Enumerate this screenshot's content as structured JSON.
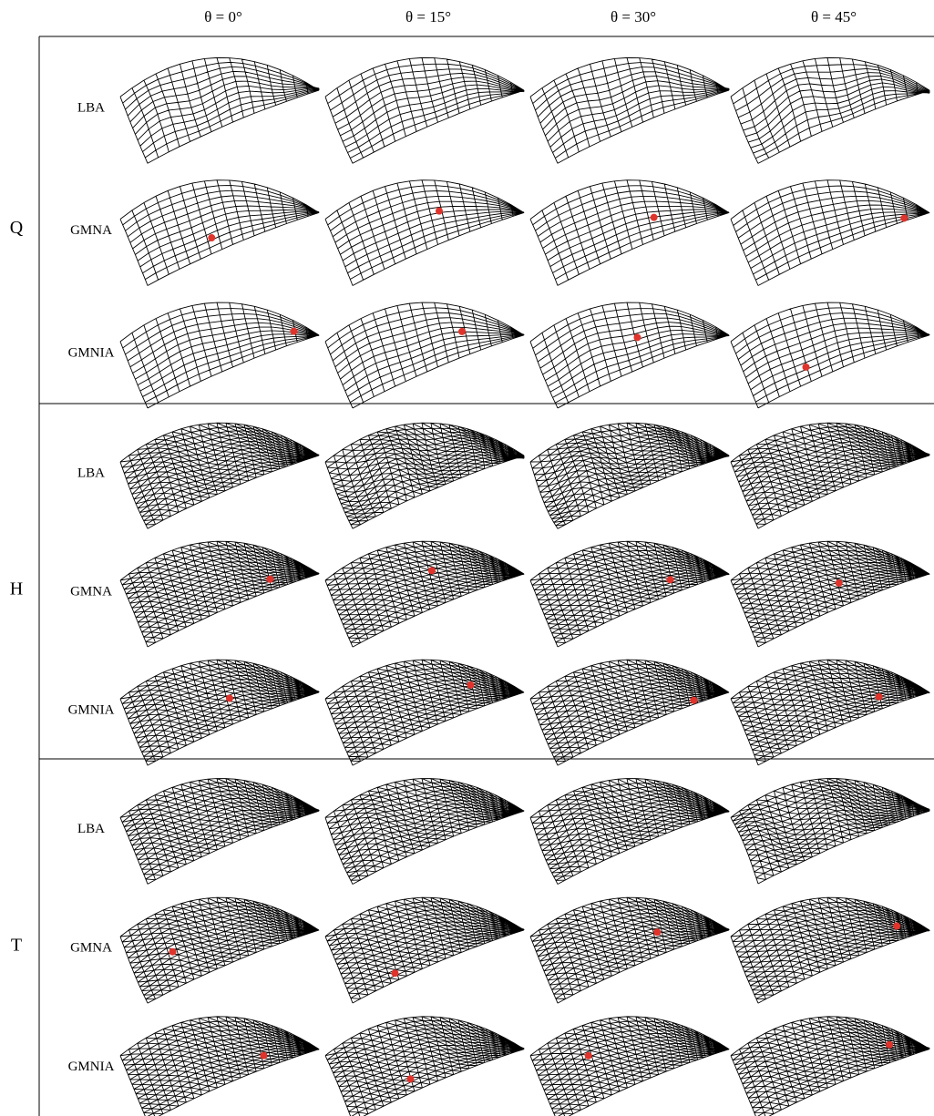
{
  "columns": [
    "θ = 0°",
    "θ = 15°",
    "θ = 30°",
    "θ = 45°"
  ],
  "groups": [
    {
      "label": "Q",
      "rows": [
        "LBA",
        "GMNA",
        "GMNIA"
      ]
    },
    {
      "label": "H",
      "rows": [
        "LBA",
        "GMNA",
        "GMNIA"
      ]
    },
    {
      "label": "T",
      "rows": [
        "LBA",
        "GMNA",
        "GMNIA"
      ]
    }
  ]
}
